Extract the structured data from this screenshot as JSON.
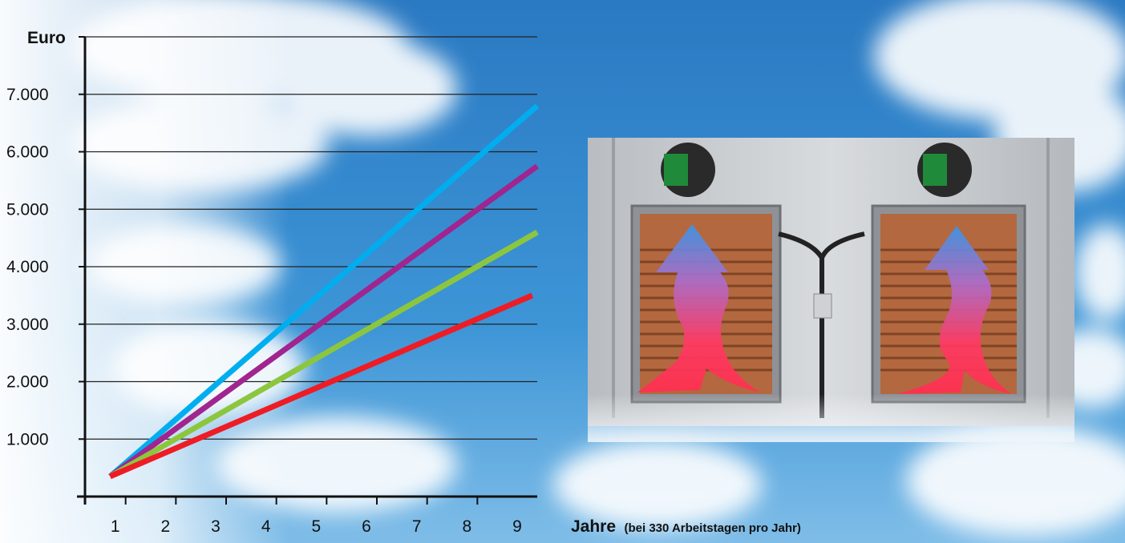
{
  "chart_data": {
    "type": "line",
    "ylabel": "Euro",
    "xlabel": "Jahre",
    "xlabel_note": "(bei 330 Arbeitstagen pro Jahr)",
    "x_ticks": [
      "1",
      "2",
      "3",
      "4",
      "5",
      "6",
      "7",
      "8",
      "9"
    ],
    "y_ticks": [
      "1.000",
      "2.000",
      "3.000",
      "4.000",
      "5.000",
      "6.000",
      "7.000"
    ],
    "xlim": [
      0,
      9
    ],
    "ylim": [
      0,
      8000
    ],
    "grid": true,
    "series": [
      {
        "color": "#00aeef",
        "x": [
          0.5,
          9
        ],
        "y": [
          350,
          6800
        ]
      },
      {
        "color": "#a0258f",
        "x": [
          0.5,
          9
        ],
        "y": [
          350,
          5750
        ]
      },
      {
        "color": "#8cc63e",
        "x": [
          0.5,
          9
        ],
        "y": [
          350,
          4600
        ]
      },
      {
        "color": "#ee1c25",
        "x": [
          0.5,
          8.9
        ],
        "y": [
          350,
          3500
        ]
      }
    ]
  },
  "background": {
    "sky_color": "#2f86cc",
    "cloud_color": "#ffffff"
  },
  "illustration": {
    "name": "heat-exchanger-units",
    "arrow_colors": [
      "#3b95e6",
      "#ff3a64"
    ]
  }
}
